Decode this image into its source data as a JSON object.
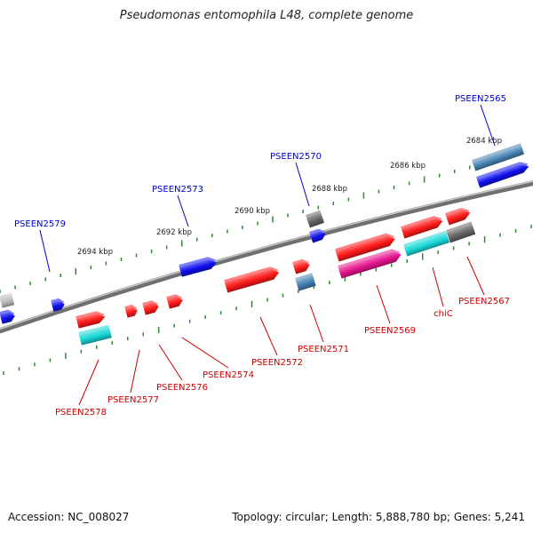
{
  "title": "Pseudomonas entomophila L48, complete genome",
  "footer": {
    "accession": "Accession: NC_008027",
    "summary": "Topology: circular; Length: 5,888,780 bp; Genes: 5,241"
  },
  "colors": {
    "backbone": "#808080",
    "ticks": "#2e8b2e",
    "upper_label": "#0000cc",
    "lower_label": "#cc0000",
    "red": "#ff1a1a",
    "blue": "#1010ee",
    "cyan": "#17d7d7",
    "magenta": "#e6158f",
    "steel": "#4682b4",
    "gray": "#666666",
    "silver": "#bbbbbb"
  },
  "kbp_labels": [
    "2684 kbp",
    "2686 kbp",
    "2688 kbp",
    "2690 kbp",
    "2692 kbp",
    "2694 kbp"
  ],
  "upper_gene_labels": [
    "PSEEN2565",
    "PSEEN2570",
    "PSEEN2573",
    "PSEEN2579"
  ],
  "lower_gene_labels": [
    "PSEEN2567",
    "chiC",
    "PSEEN2569",
    "PSEEN2571",
    "PSEEN2572",
    "PSEEN2574",
    "PSEEN2576",
    "PSEEN2577",
    "PSEEN2578"
  ]
}
